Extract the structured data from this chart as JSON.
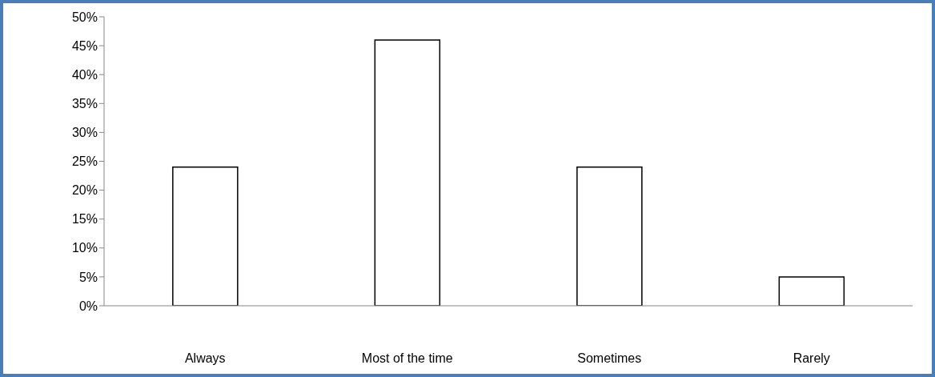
{
  "chart_data": {
    "type": "bar",
    "categories": [
      "Always",
      "Most of the time",
      "Sometimes",
      "Rarely"
    ],
    "values": [
      24,
      46,
      24,
      5
    ],
    "color": "#ffffff",
    "ylim": [
      0,
      50
    ],
    "yticks": [
      {
        "value": 0,
        "label": "0%"
      },
      {
        "value": 5,
        "label": "5%"
      },
      {
        "value": 10,
        "label": "10%"
      },
      {
        "value": 15,
        "label": "15%"
      },
      {
        "value": 20,
        "label": "20%"
      },
      {
        "value": 25,
        "label": "25%"
      },
      {
        "value": 30,
        "label": "30%"
      },
      {
        "value": 35,
        "label": "35%"
      },
      {
        "value": 40,
        "label": "40%"
      },
      {
        "value": 45,
        "label": "45%"
      },
      {
        "value": 50,
        "label": "50%"
      }
    ],
    "grid": false
  }
}
